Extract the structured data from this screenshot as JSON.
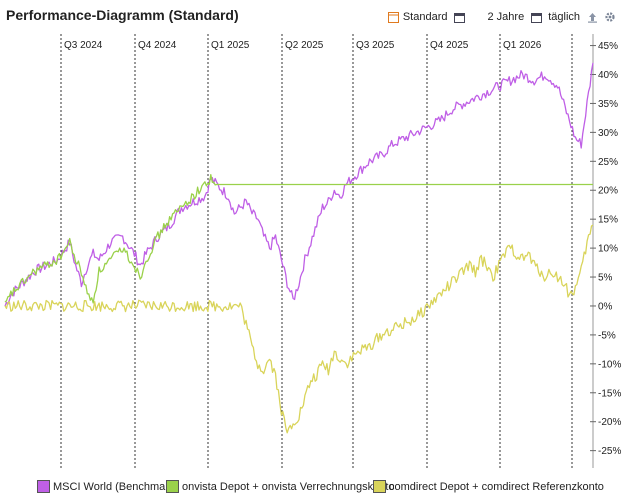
{
  "header": {
    "title": "Performance-Diagramm (Standard)",
    "view_label": "Standard",
    "range_label": "2 Jahre",
    "interval_label": "täglich",
    "icons": [
      "view-config-icon",
      "calendar-icon",
      "calendar-icon",
      "export-icon",
      "settings-gear-icon"
    ]
  },
  "colors": {
    "msci": "#bf5fe6",
    "onvista": "#9ad14a",
    "comdirect": "#d9d45a",
    "grid": "#333333",
    "zero": "#b5d86e"
  },
  "chart_data": {
    "type": "line",
    "x_ticks": [
      "Q3 2024",
      "Q4 2024",
      "Q1 2025",
      "Q2 2025",
      "Q3 2025",
      "Q4 2025",
      "Q1 2026"
    ],
    "y_ticks": [
      45,
      40,
      35,
      30,
      25,
      20,
      15,
      10,
      5,
      0,
      -5,
      -10,
      -15,
      -20,
      -25
    ],
    "y_tick_labels": [
      "45%",
      "40%",
      "35%",
      "30%",
      "25%",
      "20%",
      "15%",
      "10%",
      "5%",
      "0%",
      "-5%",
      "-10%",
      "-15%",
      "-20%",
      "-25%"
    ],
    "ylim": [
      -28,
      47
    ],
    "xlim": [
      0,
      100
    ],
    "series": [
      {
        "name": "MSCI World (Benchmark)",
        "points": [
          [
            0,
            0
          ],
          [
            1,
            2
          ],
          [
            2,
            3
          ],
          [
            3,
            4
          ],
          [
            5,
            6
          ],
          [
            7,
            7
          ],
          [
            9,
            8
          ],
          [
            11,
            11
          ],
          [
            12,
            7
          ],
          [
            13,
            4
          ],
          [
            14,
            7
          ],
          [
            15,
            9
          ],
          [
            16,
            8
          ],
          [
            18,
            11
          ],
          [
            20,
            12
          ],
          [
            22,
            9
          ],
          [
            23,
            7
          ],
          [
            24,
            9
          ],
          [
            26,
            12
          ],
          [
            28,
            14
          ],
          [
            30,
            17
          ],
          [
            32,
            18
          ],
          [
            34,
            19
          ],
          [
            35,
            22
          ],
          [
            36,
            21
          ],
          [
            37,
            20
          ],
          [
            38,
            19
          ],
          [
            39,
            16
          ],
          [
            40,
            17
          ],
          [
            41,
            18
          ],
          [
            42,
            16
          ],
          [
            43,
            15
          ],
          [
            44,
            12
          ],
          [
            45,
            10
          ],
          [
            46,
            12
          ],
          [
            47,
            8
          ],
          [
            48,
            4
          ],
          [
            49,
            1
          ],
          [
            50,
            4
          ],
          [
            51,
            8
          ],
          [
            52,
            11
          ],
          [
            53,
            14
          ],
          [
            54,
            17
          ],
          [
            55,
            18
          ],
          [
            56,
            20
          ],
          [
            57,
            19
          ],
          [
            58,
            21
          ],
          [
            59,
            22
          ],
          [
            60,
            23
          ],
          [
            61,
            24
          ],
          [
            62,
            25
          ],
          [
            64,
            26
          ],
          [
            66,
            28
          ],
          [
            68,
            29
          ],
          [
            70,
            30
          ],
          [
            72,
            31
          ],
          [
            74,
            32
          ],
          [
            76,
            34
          ],
          [
            78,
            35
          ],
          [
            80,
            36
          ],
          [
            82,
            37
          ],
          [
            84,
            38
          ],
          [
            86,
            39
          ],
          [
            88,
            40
          ],
          [
            90,
            39
          ],
          [
            92,
            40
          ],
          [
            93,
            39
          ],
          [
            94,
            38
          ],
          [
            95,
            35
          ],
          [
            96,
            32
          ],
          [
            97,
            29
          ],
          [
            98,
            28
          ],
          [
            99,
            35
          ],
          [
            100,
            42
          ]
        ],
        "color": "msci"
      },
      {
        "name": "onvista Depot + onvista Verrechnungskonto",
        "points": [
          [
            0,
            0
          ],
          [
            1,
            2
          ],
          [
            2,
            3
          ],
          [
            3,
            4
          ],
          [
            5,
            6
          ],
          [
            7,
            7
          ],
          [
            9,
            8
          ],
          [
            11,
            11
          ],
          [
            12,
            8
          ],
          [
            13,
            6
          ],
          [
            14,
            2
          ],
          [
            15,
            1
          ],
          [
            16,
            6
          ],
          [
            18,
            8
          ],
          [
            20,
            10
          ],
          [
            22,
            7
          ],
          [
            23,
            5
          ],
          [
            24,
            8
          ],
          [
            26,
            12
          ],
          [
            28,
            15
          ],
          [
            30,
            17
          ],
          [
            31,
            18
          ],
          [
            32,
            19
          ],
          [
            33,
            20
          ],
          [
            34,
            21
          ],
          [
            35,
            22
          ],
          [
            36,
            21
          ],
          [
            37,
            21
          ],
          [
            38,
            21
          ],
          [
            40,
            21
          ],
          [
            50,
            21
          ],
          [
            60,
            21
          ],
          [
            70,
            21
          ],
          [
            80,
            21
          ],
          [
            90,
            21
          ],
          [
            100,
            21
          ]
        ],
        "color": "onvista"
      },
      {
        "name": "comdirect Depot + comdirect Referenzkonto",
        "points": [
          [
            0,
            0
          ],
          [
            10,
            0
          ],
          [
            20,
            0
          ],
          [
            30,
            0
          ],
          [
            38,
            0
          ],
          [
            40,
            0
          ],
          [
            41,
            -3
          ],
          [
            42,
            -7
          ],
          [
            43,
            -10
          ],
          [
            44,
            -11
          ],
          [
            45,
            -9
          ],
          [
            46,
            -12
          ],
          [
            47,
            -18
          ],
          [
            48,
            -22
          ],
          [
            49,
            -20
          ],
          [
            50,
            -19
          ],
          [
            51,
            -16
          ],
          [
            52,
            -13
          ],
          [
            53,
            -12
          ],
          [
            54,
            -10
          ],
          [
            55,
            -11
          ],
          [
            56,
            -8
          ],
          [
            57,
            -9
          ],
          [
            58,
            -10
          ],
          [
            59,
            -9
          ],
          [
            60,
            -8
          ],
          [
            62,
            -7
          ],
          [
            64,
            -5
          ],
          [
            66,
            -4
          ],
          [
            68,
            -3
          ],
          [
            70,
            -2
          ],
          [
            72,
            0
          ],
          [
            74,
            2
          ],
          [
            76,
            4
          ],
          [
            78,
            6
          ],
          [
            79,
            7
          ],
          [
            80,
            6
          ],
          [
            81,
            8
          ],
          [
            82,
            7
          ],
          [
            83,
            5
          ],
          [
            84,
            7
          ],
          [
            85,
            9
          ],
          [
            86,
            10
          ],
          [
            87,
            9
          ],
          [
            88,
            8
          ],
          [
            89,
            9
          ],
          [
            90,
            7
          ],
          [
            91,
            6
          ],
          [
            92,
            5
          ],
          [
            93,
            6
          ],
          [
            94,
            5
          ],
          [
            95,
            4
          ],
          [
            96,
            2
          ],
          [
            97,
            3
          ],
          [
            98,
            6
          ],
          [
            99,
            11
          ],
          [
            100,
            14
          ]
        ],
        "color": "comdirect"
      }
    ],
    "grid": true,
    "legend_position": "bottom"
  }
}
